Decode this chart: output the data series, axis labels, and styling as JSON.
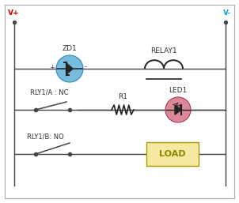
{
  "bg_color": "#ffffff",
  "wire_color": "#444444",
  "vplus_color": "#cc0000",
  "vminus_color": "#00aacc",
  "zd1_color": "#77bbdd",
  "led1_color": "#dd8899",
  "load_fill": "#f5e8a0",
  "load_edge": "#aa9900",
  "labels": {
    "vplus": "V+",
    "vminus": "V-",
    "zd1": "ZD1",
    "relay1": "RELAY1",
    "rly1a": "RLY1/A : NC",
    "r1": "R1",
    "led1": "LED1",
    "rly1b": "RLY1/B: NO",
    "load": "LOAD"
  },
  "figsize": [
    3.02,
    2.57
  ],
  "dpi": 100
}
